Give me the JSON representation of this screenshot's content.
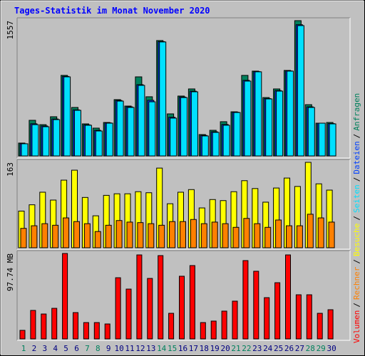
{
  "title": "Tages-Statistik im Monat November 2020",
  "categories": [
    "1",
    "2",
    "3",
    "4",
    "5",
    "6",
    "7",
    "8",
    "9",
    "10",
    "11",
    "12",
    "13",
    "14",
    "15",
    "16",
    "17",
    "18",
    "19",
    "20",
    "21",
    "22",
    "23",
    "24",
    "25",
    "26",
    "27",
    "28",
    "29",
    "30"
  ],
  "weekend_indices": [
    0,
    6,
    7,
    13,
    14,
    20,
    21,
    27,
    28
  ],
  "weekend_color": "#00805c",
  "weekday_color": "#000080",
  "legend_separator": "/",
  "chart_data": [
    {
      "type": "bar",
      "ylim": [
        0,
        1557
      ],
      "yticks": [
        1557
      ],
      "series": [
        {
          "name": "Anfragen",
          "color": "#00805c",
          "values": [
            148,
            410,
            360,
            451,
            927,
            558,
            369,
            320,
            385,
            648,
            574,
            910,
            681,
            1328,
            484,
            689,
            771,
            246,
            295,
            394,
            508,
            927,
            976,
            672,
            771,
            984,
            1557,
            590,
            377,
            385
          ]
        },
        {
          "name": "Dateien",
          "color": "#0040ff",
          "values": [
            140,
            370,
            345,
            425,
            915,
            530,
            358,
            295,
            380,
            638,
            565,
            820,
            640,
            1316,
            445,
            678,
            745,
            236,
            278,
            362,
            503,
            870,
            970,
            660,
            752,
            978,
            1510,
            565,
            377,
            372
          ]
        },
        {
          "name": "Seiten",
          "color": "#00e0ff",
          "values": [
            140,
            360,
            336,
            418,
            910,
            525,
            353,
            287,
            377,
            631,
            558,
            812,
            623,
            1312,
            435,
            672,
            738,
            230,
            271,
            353,
            500,
            861,
            968,
            656,
            746,
            976,
            1500,
            558,
            377,
            369
          ]
        }
      ]
    },
    {
      "type": "bar",
      "ylim": [
        0,
        163
      ],
      "yticks": [
        163
      ],
      "series": [
        {
          "name": "Besuche",
          "color": "#ffff00",
          "values": [
            70,
            82,
            106,
            91,
            129,
            148,
            96,
            61,
            100,
            103,
            103,
            107,
            105,
            152,
            84,
            106,
            111,
            76,
            92,
            90,
            107,
            128,
            113,
            87,
            114,
            133,
            117,
            163,
            122,
            110
          ]
        },
        {
          "name": "Rechner",
          "color": "#ff8000",
          "values": [
            37,
            42,
            46,
            43,
            57,
            50,
            46,
            31,
            43,
            52,
            49,
            48,
            46,
            43,
            50,
            50,
            54,
            46,
            49,
            46,
            39,
            56,
            46,
            39,
            53,
            42,
            42,
            64,
            57,
            49
          ]
        }
      ]
    },
    {
      "type": "bar",
      "ylim": [
        0,
        97.74
      ],
      "yticks": [
        {
          "value": 97.74,
          "label": "97.74 MB"
        }
      ],
      "series": [
        {
          "name": "Volumen",
          "color": "#ff0000",
          "values": [
            9.8,
            32.6,
            28.5,
            35.0,
            97.74,
            30.1,
            18.7,
            18.7,
            17.1,
            70.0,
            57.0,
            96.1,
            69.2,
            95.3,
            29.3,
            71.7,
            83.9,
            18.7,
            20.4,
            31.8,
            43.2,
            89.6,
            77.4,
            47.2,
            64.3,
            96.1,
            50.5,
            50.5,
            29.3,
            33.4
          ]
        }
      ]
    }
  ]
}
